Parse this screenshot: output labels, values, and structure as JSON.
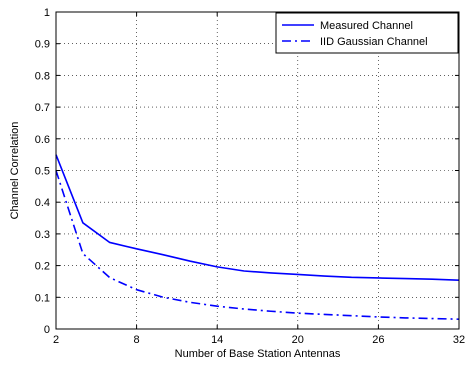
{
  "chart_data": {
    "type": "line",
    "title": "",
    "xlabel": "Number of Base Station Antennas",
    "ylabel": "Channel Correlation",
    "xlim": [
      2,
      32
    ],
    "ylim": [
      0,
      1
    ],
    "xticks": [
      2,
      8,
      14,
      20,
      26,
      32
    ],
    "yticks": [
      0,
      0.1,
      0.2,
      0.3,
      0.4,
      0.5,
      0.6,
      0.7,
      0.8,
      0.9,
      1
    ],
    "grid": true,
    "legend_position": "top-right",
    "series": [
      {
        "name": "Measured Channel",
        "style": "solid",
        "color": "#0000ff",
        "x": [
          2,
          4,
          6,
          8,
          10,
          12,
          14,
          16,
          18,
          20,
          22,
          24,
          26,
          28,
          30,
          32
        ],
        "y": [
          0.55,
          0.335,
          0.273,
          0.253,
          0.234,
          0.214,
          0.196,
          0.183,
          0.177,
          0.172,
          0.167,
          0.163,
          0.161,
          0.159,
          0.157,
          0.154
        ]
      },
      {
        "name": "IID Gaussian Channel",
        "style": "dashdot",
        "color": "#0000ff",
        "x": [
          2,
          4,
          6,
          8,
          10,
          12,
          14,
          16,
          18,
          20,
          22,
          24,
          26,
          28,
          30,
          32
        ],
        "y": [
          0.5,
          0.238,
          0.162,
          0.124,
          0.1,
          0.084,
          0.072,
          0.063,
          0.056,
          0.05,
          0.046,
          0.042,
          0.038,
          0.035,
          0.033,
          0.031
        ]
      }
    ]
  }
}
